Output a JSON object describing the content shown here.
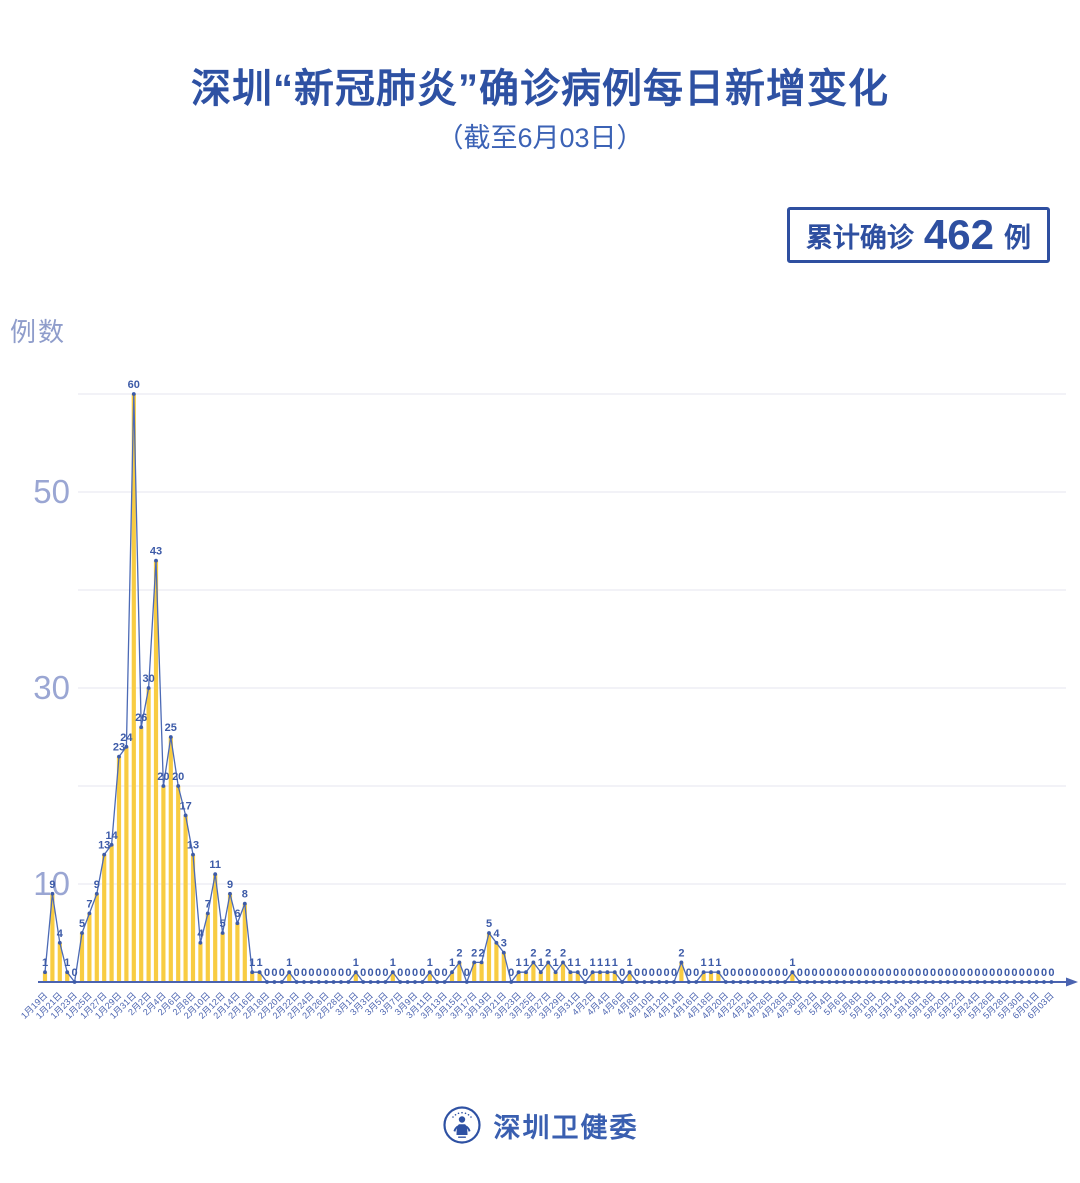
{
  "title": "深圳“新冠肺炎”确诊病例每日新增变化",
  "subtitle": "（截至6月03日）",
  "badge": {
    "prefix": "累计确诊",
    "value": "462",
    "suffix": "例"
  },
  "y_axis_title": "例数",
  "footer": {
    "org": "深圳卫健委"
  },
  "chart_data": {
    "type": "bar",
    "title": "深圳“新冠肺炎”确诊病例每日新增变化",
    "subtitle": "（截至6月03日）",
    "total_confirmed": 462,
    "ylabel": "例数",
    "ylim": [
      0,
      62
    ],
    "gridlines": [
      10,
      20,
      30,
      40,
      50,
      60
    ],
    "y_ticks_labeled": [
      10,
      30,
      50
    ],
    "x_label_interval_days": 2,
    "x_labels": [
      "1月19日",
      "1月21日",
      "1月23日",
      "1月25日",
      "1月27日",
      "1月29日",
      "1月31日",
      "2月2日",
      "2月4日",
      "2月6日",
      "2月8日",
      "2月10日",
      "2月12日",
      "2月14日",
      "2月16日",
      "2月18日",
      "2月20日",
      "2月22日",
      "2月24日",
      "2月26日",
      "2月28日",
      "3月1日",
      "3月3日",
      "3月5日",
      "3月7日",
      "3月9日",
      "3月11日",
      "3月13日",
      "3月15日",
      "3月17日",
      "3月19日",
      "3月21日",
      "3月23日",
      "3月25日",
      "3月27日",
      "3月29日",
      "3月31日",
      "4月2日",
      "4月4日",
      "4月6日",
      "4月8日",
      "4月10日",
      "4月12日",
      "4月14日",
      "4月16日",
      "4月18日",
      "4月20日",
      "4月22日",
      "4月24日",
      "4月26日",
      "4月28日",
      "4月30日",
      "5月2日",
      "5月4日",
      "5月6日",
      "5月8日",
      "5月10日",
      "5月12日",
      "5月14日",
      "5月16日",
      "5月18日",
      "5月20日",
      "5月22日",
      "5月24日",
      "5月26日",
      "5月28日",
      "5月30日",
      "6月01日",
      "6月03日"
    ],
    "values_daily": [
      1,
      9,
      4,
      1,
      0,
      5,
      7,
      9,
      13,
      14,
      23,
      24,
      60,
      26,
      30,
      43,
      20,
      25,
      20,
      17,
      13,
      4,
      7,
      11,
      5,
      9,
      6,
      8,
      1,
      1,
      0,
      0,
      0,
      1,
      0,
      0,
      0,
      0,
      0,
      0,
      0,
      0,
      1,
      0,
      0,
      0,
      0,
      1,
      0,
      0,
      0,
      0,
      1,
      0,
      0,
      1,
      2,
      0,
      2,
      2,
      5,
      4,
      3,
      0,
      1,
      1,
      2,
      1,
      2,
      1,
      2,
      1,
      1,
      0,
      1,
      1,
      1,
      1,
      0,
      1,
      0,
      0,
      0,
      0,
      0,
      0,
      2,
      0,
      0,
      1,
      1,
      1,
      0,
      0,
      0,
      0,
      0,
      0,
      0,
      0,
      0,
      1,
      0,
      0,
      0,
      0,
      0,
      0,
      0,
      0,
      0,
      0,
      0,
      0,
      0,
      0,
      0,
      0,
      0,
      0,
      0,
      0,
      0,
      0,
      0,
      0,
      0,
      0,
      0,
      0,
      0,
      0,
      0,
      0,
      0,
      0,
      0
    ],
    "colors": {
      "bar": "#F8CC42",
      "line": "#4C6AB5",
      "marker": "#3D5BA8",
      "data_label": "#3D5BA8",
      "axis": "#4A63B0",
      "x_tick_label": "#4A63B0",
      "y_tick_label": "#9AA6D3",
      "grid": "#EBEBF2"
    }
  },
  "brand": {
    "title_blue": "#2E51A3",
    "accent_blue": "#3A5FB0"
  }
}
